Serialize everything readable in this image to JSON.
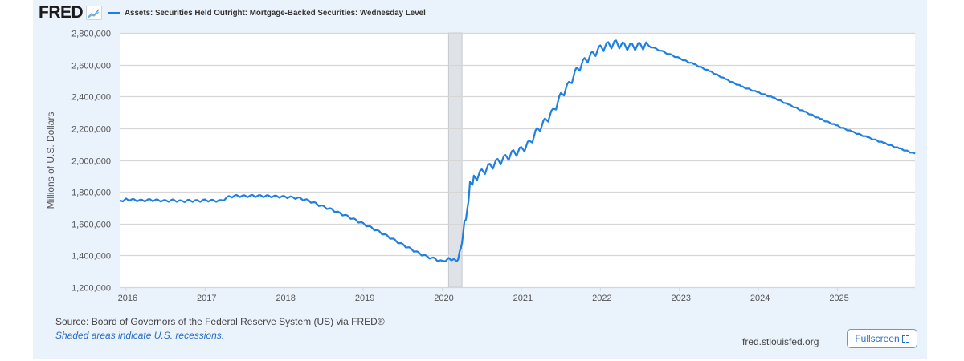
{
  "header": {
    "logo_text": "FRED",
    "series_title": "Assets: Securities Held Outright: Mortgage-Backed Securities: Wednesday Level"
  },
  "footer": {
    "source": "Source: Board of Governors of the Federal Reserve System (US) via FRED®",
    "recession_note": "Shaded areas indicate U.S. recessions.",
    "site": "fred.stlouisfed.org",
    "fullscreen_label": "Fullscreen"
  },
  "colors": {
    "line": "#1f7fe0",
    "background": "#eaf2fb",
    "plot_bg": "#ffffff",
    "grid": "#d6d6d6",
    "recession": "#dfe3e8"
  },
  "chart_data": {
    "type": "line",
    "title": "Assets: Securities Held Outright: Mortgage-Backed Securities: Wednesday Level",
    "xlabel": "",
    "ylabel": "Millions of U.S. Dollars",
    "ylim": [
      1200000,
      2800000
    ],
    "xlim": [
      2015.92,
      2025.98
    ],
    "yticks": [
      1200000,
      1400000,
      1600000,
      1800000,
      2000000,
      2200000,
      2400000,
      2600000,
      2800000
    ],
    "ytick_labels": [
      "1,200,000",
      "1,400,000",
      "1,600,000",
      "1,800,000",
      "2,000,000",
      "2,200,000",
      "2,400,000",
      "2,600,000",
      "2,800,000"
    ],
    "xticks": [
      2016,
      2017,
      2018,
      2019,
      2020,
      2021,
      2022,
      2023,
      2024,
      2025
    ],
    "xtick_labels": [
      "2016",
      "2017",
      "2018",
      "2019",
      "2020",
      "2021",
      "2022",
      "2023",
      "2024",
      "2025"
    ],
    "grid": true,
    "legend_position": "top",
    "recessions": [
      {
        "start": 2020.08,
        "end": 2020.25
      }
    ],
    "series": [
      {
        "name": "Assets: Securities Held Outright: Mortgage-Backed Securities: Wednesday Level",
        "x": [
          2015.92,
          2016.0,
          2016.1,
          2016.2,
          2016.3,
          2016.4,
          2016.5,
          2016.6,
          2016.7,
          2016.8,
          2016.9,
          2017.0,
          2017.1,
          2017.2,
          2017.3,
          2017.4,
          2017.5,
          2017.6,
          2017.7,
          2017.8,
          2017.9,
          2018.0,
          2018.1,
          2018.2,
          2018.3,
          2018.4,
          2018.5,
          2018.6,
          2018.7,
          2018.8,
          2018.9,
          2019.0,
          2019.1,
          2019.2,
          2019.3,
          2019.4,
          2019.5,
          2019.6,
          2019.7,
          2019.8,
          2019.9,
          2020.0,
          2020.08,
          2020.15,
          2020.2,
          2020.22,
          2020.25,
          2020.28,
          2020.3,
          2020.35,
          2020.4,
          2020.5,
          2020.6,
          2020.7,
          2020.8,
          2020.9,
          2021.0,
          2021.1,
          2021.2,
          2021.3,
          2021.4,
          2021.5,
          2021.6,
          2021.7,
          2021.8,
          2021.9,
          2022.0,
          2022.1,
          2022.2,
          2022.3,
          2022.4,
          2022.5,
          2022.6,
          2022.7,
          2022.8,
          2022.9,
          2023.0,
          2023.2,
          2023.4,
          2023.6,
          2023.8,
          2024.0,
          2024.2,
          2024.4,
          2024.6,
          2024.8,
          2025.0,
          2025.2,
          2025.4,
          2025.6,
          2025.8,
          2025.98
        ],
        "values": [
          1740000,
          1752000,
          1748000,
          1744000,
          1748000,
          1746000,
          1742000,
          1746000,
          1740000,
          1744000,
          1742000,
          1746000,
          1744000,
          1742000,
          1768000,
          1774000,
          1772000,
          1774000,
          1773000,
          1772000,
          1770000,
          1768000,
          1764000,
          1758000,
          1745000,
          1725000,
          1705000,
          1688000,
          1665000,
          1645000,
          1622000,
          1598000,
          1574000,
          1548000,
          1522000,
          1494000,
          1466000,
          1440000,
          1414000,
          1392000,
          1378000,
          1360000,
          1378000,
          1372000,
          1368000,
          1420000,
          1470000,
          1610000,
          1620000,
          1840000,
          1880000,
          1920000,
          1955000,
          1985000,
          2010000,
          2040000,
          2060000,
          2100000,
          2180000,
          2240000,
          2300000,
          2400000,
          2470000,
          2560000,
          2620000,
          2660000,
          2700000,
          2720000,
          2730000,
          2715000,
          2712000,
          2715000,
          2720000,
          2700000,
          2680000,
          2660000,
          2640000,
          2600000,
          2555000,
          2505000,
          2460000,
          2425000,
          2390000,
          2345000,
          2300000,
          2255000,
          2215000,
          2175000,
          2140000,
          2105000,
          2070000,
          2040000
        ]
      }
    ]
  }
}
